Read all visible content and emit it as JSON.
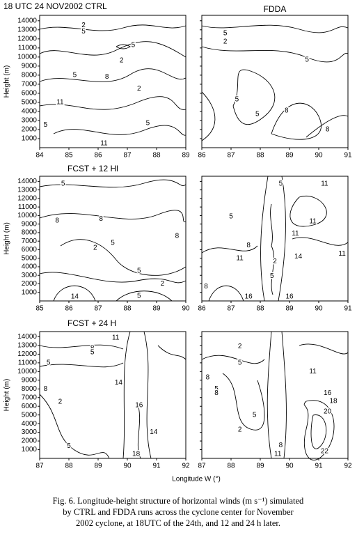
{
  "chart_data": [
    {
      "type": "contour",
      "title": "18 UTC   24 NOV2002 CTRL",
      "y_label": "Height (m)",
      "xlim": [
        84,
        89
      ],
      "xticks": [
        84,
        85,
        86,
        87,
        88,
        89
      ],
      "ylim": [
        0,
        14600
      ],
      "yticks": [
        1000,
        2000,
        3000,
        4000,
        5000,
        6000,
        7000,
        8000,
        9000,
        10000,
        11000,
        12000,
        13000,
        14000
      ],
      "contour_labels": [
        {
          "x": 85.5,
          "y": 13500,
          "value": 2
        },
        {
          "x": 85.5,
          "y": 12800,
          "value": 5
        },
        {
          "x": 87.2,
          "y": 11300,
          "value": 5
        },
        {
          "x": 86.8,
          "y": 9600,
          "value": 2
        },
        {
          "x": 85.2,
          "y": 8000,
          "value": 5
        },
        {
          "x": 86.3,
          "y": 7800,
          "value": 8
        },
        {
          "x": 87.4,
          "y": 6500,
          "value": 2
        },
        {
          "x": 84.7,
          "y": 5000,
          "value": 11
        },
        {
          "x": 84.2,
          "y": 2500,
          "value": 5
        },
        {
          "x": 87.7,
          "y": 2700,
          "value": 5
        },
        {
          "x": 86.2,
          "y": 300,
          "value": 11
        }
      ]
    },
    {
      "type": "contour",
      "title": "FDDA",
      "xlim": [
        86,
        91
      ],
      "xticks": [
        86,
        87,
        88,
        89,
        90,
        91
      ],
      "ylim": [
        0,
        14600
      ],
      "yticks": [
        1000,
        2000,
        3000,
        4000,
        5000,
        6000,
        7000,
        8000,
        9000,
        10000,
        11000,
        12000,
        13000,
        14000
      ],
      "contour_labels": [
        {
          "x": 86.8,
          "y": 12600,
          "value": 5
        },
        {
          "x": 86.8,
          "y": 11700,
          "value": 2
        },
        {
          "x": 89.6,
          "y": 9700,
          "value": 5
        },
        {
          "x": 87.2,
          "y": 5300,
          "value": 5
        },
        {
          "x": 87.9,
          "y": 3700,
          "value": 5
        },
        {
          "x": 88.9,
          "y": 4100,
          "value": 8
        },
        {
          "x": 90.3,
          "y": 2000,
          "value": 8
        }
      ]
    },
    {
      "type": "contour",
      "title": "FCST + 12 Hl",
      "y_label": "Height (m)",
      "xlim": [
        85,
        90
      ],
      "xticks": [
        85,
        86,
        87,
        88,
        89,
        90
      ],
      "ylim": [
        0,
        14600
      ],
      "yticks": [
        1000,
        2000,
        3000,
        4000,
        5000,
        6000,
        7000,
        8000,
        9000,
        10000,
        11000,
        12000,
        13000,
        14000
      ],
      "contour_labels": [
        {
          "x": 85.8,
          "y": 13700,
          "value": 5
        },
        {
          "x": 85.6,
          "y": 9400,
          "value": 8
        },
        {
          "x": 87.1,
          "y": 9600,
          "value": 8
        },
        {
          "x": 89.7,
          "y": 7600,
          "value": 8
        },
        {
          "x": 87.5,
          "y": 6800,
          "value": 5
        },
        {
          "x": 86.9,
          "y": 6200,
          "value": 2
        },
        {
          "x": 88.4,
          "y": 3500,
          "value": 5
        },
        {
          "x": 89.2,
          "y": 2000,
          "value": 2
        },
        {
          "x": 88.4,
          "y": 600,
          "value": 5
        },
        {
          "x": 86.2,
          "y": 300,
          "value": 14
        }
      ]
    },
    {
      "type": "contour",
      "xlim": [
        86,
        91
      ],
      "xticks": [
        86,
        87,
        88,
        89,
        90,
        91
      ],
      "ylim": [
        0,
        14600
      ],
      "yticks": [
        1000,
        2000,
        3000,
        4000,
        5000,
        6000,
        7000,
        8000,
        9000,
        10000,
        11000,
        12000,
        13000,
        14000
      ],
      "contour_labels": [
        {
          "x": 88.7,
          "y": 13700,
          "value": 5
        },
        {
          "x": 90.2,
          "y": 13700,
          "value": 11
        },
        {
          "x": 87.0,
          "y": 9900,
          "value": 5
        },
        {
          "x": 89.8,
          "y": 9300,
          "value": 11
        },
        {
          "x": 89.2,
          "y": 7900,
          "value": 11
        },
        {
          "x": 87.6,
          "y": 6500,
          "value": 8
        },
        {
          "x": 90.8,
          "y": 5500,
          "value": 11
        },
        {
          "x": 87.3,
          "y": 5000,
          "value": 11
        },
        {
          "x": 89.3,
          "y": 5200,
          "value": 14
        },
        {
          "x": 88.5,
          "y": 4600,
          "value": 2
        },
        {
          "x": 88.4,
          "y": 2900,
          "value": 5
        },
        {
          "x": 86.0,
          "y": 1700,
          "value": 8
        },
        {
          "x": 87.6,
          "y": 200,
          "value": 16
        },
        {
          "x": 89.0,
          "y": 200,
          "value": 16
        }
      ]
    },
    {
      "type": "contour",
      "title": "FCST + 24 H",
      "y_label": "Height (m)",
      "xlim": [
        87,
        92
      ],
      "xticks": [
        87,
        88,
        89,
        90,
        91,
        92
      ],
      "ylim": [
        0,
        14600
      ],
      "yticks": [
        1000,
        2000,
        3000,
        4000,
        5000,
        6000,
        7000,
        8000,
        9000,
        10000,
        11000,
        12000,
        13000,
        14000
      ],
      "contour_labels": [
        {
          "x": 89.6,
          "y": 13900,
          "value": 11
        },
        {
          "x": 88.8,
          "y": 12700,
          "value": 8
        },
        {
          "x": 88.8,
          "y": 12200,
          "value": 5
        },
        {
          "x": 87.3,
          "y": 11000,
          "value": 5
        },
        {
          "x": 87.2,
          "y": 8000,
          "value": 8
        },
        {
          "x": 87.7,
          "y": 6500,
          "value": 2
        },
        {
          "x": 89.7,
          "y": 8700,
          "value": 14
        },
        {
          "x": 90.4,
          "y": 6100,
          "value": 16
        },
        {
          "x": 90.9,
          "y": 3000,
          "value": 14
        },
        {
          "x": 88.0,
          "y": 1400,
          "value": 5
        },
        {
          "x": 90.3,
          "y": 200,
          "value": 18
        }
      ]
    },
    {
      "type": "contour",
      "xlim": [
        87,
        92
      ],
      "xticks": [
        87,
        88,
        89,
        90,
        91,
        92
      ],
      "ylim": [
        0,
        14600
      ],
      "yticks": [
        1000,
        2000,
        3000,
        4000,
        5000,
        6000,
        7000,
        8000,
        9000,
        10000,
        11000,
        12000,
        13000,
        14000
      ],
      "contour_labels": [
        {
          "x": 88.3,
          "y": 12900,
          "value": 2
        },
        {
          "x": 88.3,
          "y": 11000,
          "value": 5
        },
        {
          "x": 87.2,
          "y": 9300,
          "value": 8
        },
        {
          "x": 90.8,
          "y": 10000,
          "value": 11
        },
        {
          "x": 87.5,
          "y": 8000,
          "value": 5
        },
        {
          "x": 87.5,
          "y": 7500,
          "value": 8
        },
        {
          "x": 91.3,
          "y": 7500,
          "value": 16
        },
        {
          "x": 91.5,
          "y": 6600,
          "value": 18
        },
        {
          "x": 91.3,
          "y": 5400,
          "value": 20
        },
        {
          "x": 88.8,
          "y": 5000,
          "value": 5
        },
        {
          "x": 88.3,
          "y": 3300,
          "value": 2
        },
        {
          "x": 89.7,
          "y": 1500,
          "value": 8
        },
        {
          "x": 91.2,
          "y": 800,
          "value": 22
        },
        {
          "x": 89.6,
          "y": 400,
          "value": 11
        }
      ]
    }
  ],
  "x_label": "Longitude W (°)",
  "caption": [
    "Fig. 6. Longitude-height structure of horizontal winds (m s⁻¹) simulated",
    "by CTRL and FDDA runs across the cyclone center for November",
    "2002 cyclone, at 18UTC of the 24th, and 12 and 24 h later."
  ]
}
